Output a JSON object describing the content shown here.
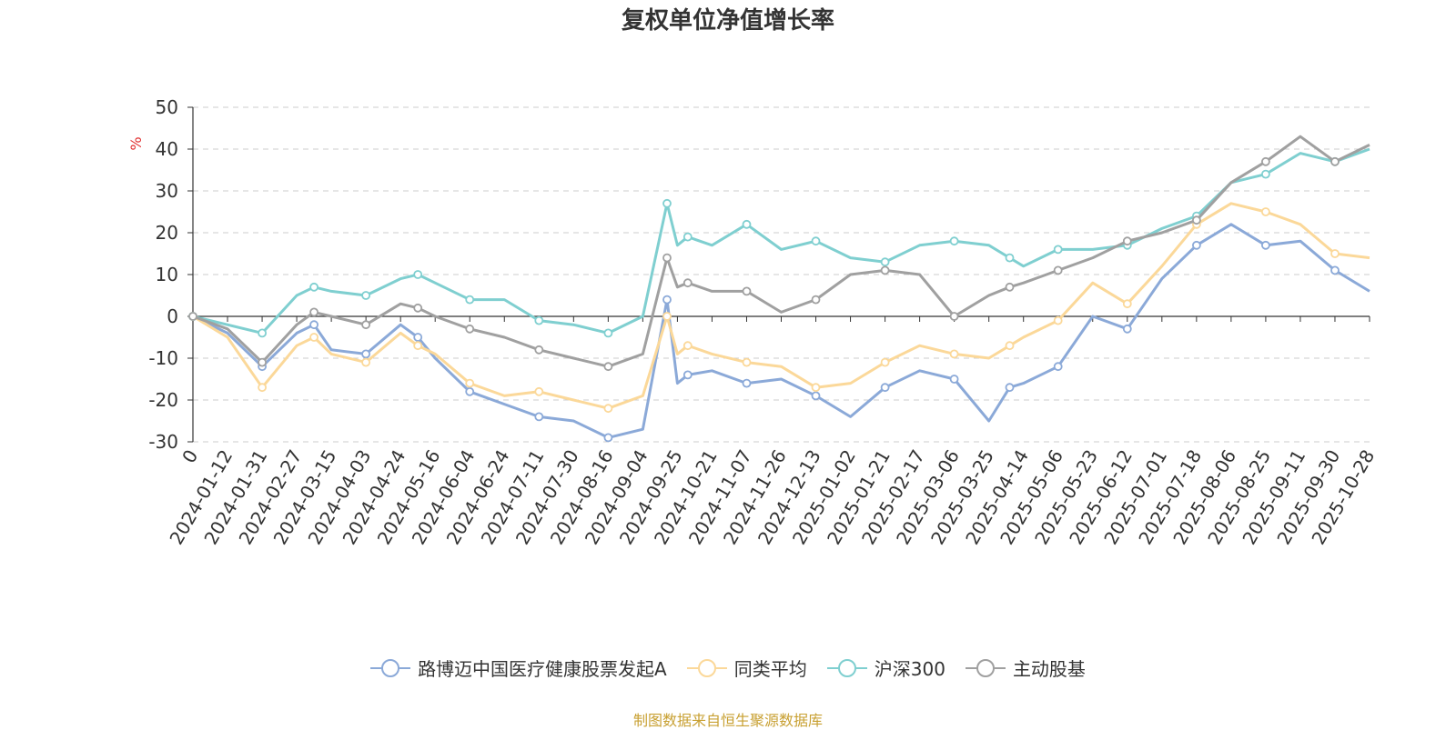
{
  "chart_data": {
    "type": "line",
    "title": "复权单位净值增长率",
    "ylabel": "%",
    "ylim": [
      -30,
      50
    ],
    "yticks": [
      -30,
      -20,
      -10,
      0,
      10,
      20,
      30,
      40,
      50
    ],
    "grid": true,
    "legend_position": "bottom",
    "x_tick_labels": [
      "0",
      "2024-01-12",
      "2024-01-31",
      "2024-02-27",
      "2024-03-15",
      "2024-04-03",
      "2024-04-24",
      "2024-05-16",
      "2024-06-04",
      "2024-06-24",
      "2024-07-11",
      "2024-07-30",
      "2024-08-16",
      "2024-09-04",
      "2024-09-25",
      "2024-10-21",
      "2024-11-07",
      "2024-11-26",
      "2024-12-13",
      "2025-01-02",
      "2025-01-21",
      "2025-02-17",
      "2025-03-06",
      "2025-03-25",
      "2025-04-14",
      "2025-05-06",
      "2025-05-23",
      "2025-06-12",
      "2025-07-01",
      "2025-07-18",
      "2025-08-06",
      "2025-08-25",
      "2025-09-11",
      "2025-09-30",
      "2025-10-28"
    ],
    "x": [
      0,
      1,
      2,
      3,
      3.5,
      4,
      5,
      6,
      6.5,
      7,
      8,
      9,
      10,
      11,
      12,
      13,
      13.7,
      14,
      14.3,
      15,
      16,
      17,
      18,
      19,
      20,
      21,
      22,
      23,
      23.6,
      24,
      25,
      26,
      27,
      28,
      29,
      30,
      31,
      32,
      33,
      34
    ],
    "series": [
      {
        "name": "路博迈中国医疗健康股票发起A",
        "color": "#8ba9d8",
        "values": [
          0,
          -4,
          -12,
          -4,
          -2,
          -8,
          -9,
          -2,
          -5,
          -10,
          -18,
          -21,
          -24,
          -25,
          -29,
          -27,
          4,
          -16,
          -14,
          -13,
          -16,
          -15,
          -19,
          -24,
          -17,
          -13,
          -15,
          -25,
          -17,
          -16,
          -12,
          0,
          -3,
          9,
          17,
          22,
          17,
          18,
          11,
          6
        ]
      },
      {
        "name": "同类平均",
        "color": "#fbd899",
        "values": [
          0,
          -5,
          -17,
          -7,
          -5,
          -9,
          -11,
          -4,
          -7,
          -9,
          -16,
          -19,
          -18,
          -20,
          -22,
          -19,
          0,
          -9,
          -7,
          -9,
          -11,
          -12,
          -17,
          -16,
          -11,
          -7,
          -9,
          -10,
          -7,
          -5,
          -1,
          8,
          3,
          12,
          22,
          27,
          25,
          22,
          15,
          14
        ]
      },
      {
        "name": "沪深300",
        "color": "#7fcfd0",
        "values": [
          0,
          -2,
          -4,
          5,
          7,
          6,
          5,
          9,
          10,
          8,
          4,
          4,
          -1,
          -2,
          -4,
          0,
          27,
          17,
          19,
          17,
          22,
          16,
          18,
          14,
          13,
          17,
          18,
          17,
          14,
          12,
          16,
          16,
          17,
          21,
          24,
          32,
          34,
          39,
          37,
          40
        ]
      },
      {
        "name": "主动股基",
        "color": "#a0a0a0",
        "values": [
          0,
          -3,
          -11,
          -2,
          1,
          0,
          -2,
          3,
          2,
          0,
          -3,
          -5,
          -8,
          -10,
          -12,
          -9,
          14,
          7,
          8,
          6,
          6,
          1,
          4,
          10,
          11,
          10,
          0,
          5,
          7,
          8,
          11,
          14,
          18,
          20,
          23,
          32,
          37,
          43,
          37,
          41
        ]
      }
    ]
  },
  "footer": {
    "source": "制图数据来自恒生聚源数据库"
  }
}
